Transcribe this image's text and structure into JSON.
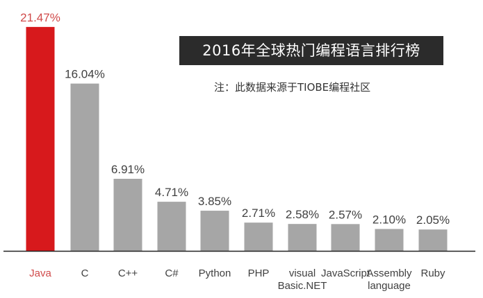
{
  "chart_data": {
    "type": "bar",
    "title": "2016年全球热门编程语言排行榜",
    "subtitle": "注：此数据来源于TIOBE编程社区",
    "xlabel": "",
    "ylabel": "",
    "ylim": [
      0,
      22
    ],
    "grid": false,
    "categories": [
      "Java",
      "C",
      "C++",
      "C#",
      "Python",
      "PHP",
      "visual Basic.NET",
      "JavaScript",
      "Assembly language",
      "Ruby"
    ],
    "category_lines": [
      [
        "Java"
      ],
      [
        "C"
      ],
      [
        "C++"
      ],
      [
        "C#"
      ],
      [
        "Python"
      ],
      [
        "PHP"
      ],
      [
        "visual",
        "Basic.NET"
      ],
      [
        "JavaScript"
      ],
      [
        "Assembly",
        "language"
      ],
      [
        "Ruby"
      ]
    ],
    "values": [
      21.47,
      16.04,
      6.91,
      4.71,
      3.85,
      2.71,
      2.58,
      2.57,
      2.1,
      2.05
    ],
    "value_labels": [
      "21.47%",
      "16.04%",
      "6.91%",
      "4.71%",
      "3.85%",
      "2.71%",
      "2.58%",
      "2.57%",
      "2.10%",
      "2.05%"
    ],
    "colors": {
      "highlight": "#d7191c",
      "bar": "#a6a6a6",
      "label": "#404040",
      "highlight_label": "#d04a4a",
      "axis": "#222222"
    },
    "highlight_index": 0
  }
}
